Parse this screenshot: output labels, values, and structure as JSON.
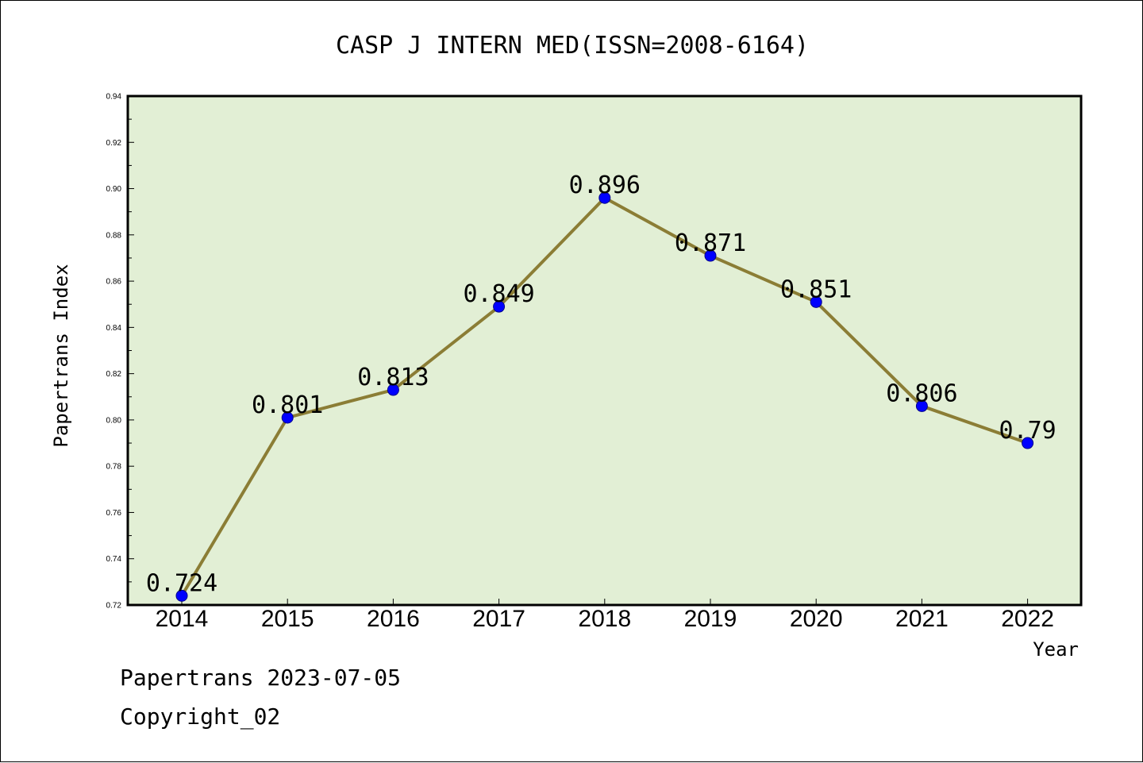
{
  "chart_data": {
    "type": "line",
    "title": "CASP J INTERN MED(ISSN=2008-6164)",
    "xlabel": "Year",
    "ylabel": "Papertrans Index",
    "categories": [
      "2014",
      "2015",
      "2016",
      "2017",
      "2018",
      "2019",
      "2020",
      "2021",
      "2022"
    ],
    "series": [
      {
        "values": [
          0.724,
          0.801,
          0.813,
          0.849,
          0.896,
          0.871,
          0.851,
          0.806,
          0.79
        ]
      }
    ],
    "data_labels": [
      "0.724",
      "0.801",
      "0.813",
      "0.849",
      "0.896",
      "0.871",
      "0.851",
      "0.806",
      "0.79"
    ],
    "ylim": [
      0.72,
      0.94
    ],
    "yticks": [
      0.72,
      0.74,
      0.76,
      0.78,
      0.8,
      0.82,
      0.84,
      0.86,
      0.88,
      0.9,
      0.92,
      0.94
    ],
    "ytick_labels": [
      "0.72",
      "0.74",
      "0.76",
      "0.78",
      "0.80",
      "0.82",
      "0.84",
      "0.86",
      "0.88",
      "0.90",
      "0.92",
      "0.94"
    ],
    "grid": false,
    "legend": "none",
    "colors": {
      "plot_background": "#e2efd5",
      "line": "#8b7d35",
      "marker": "#0000ff",
      "axes": "#000000"
    }
  },
  "footer": {
    "line1": "Papertrans 2023-07-05",
    "line2": "Copyright_02"
  }
}
